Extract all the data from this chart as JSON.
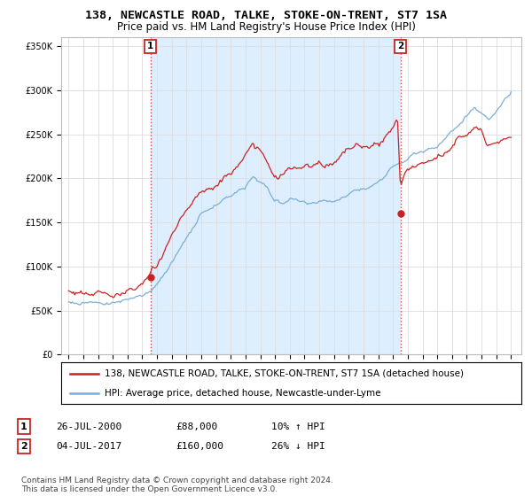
{
  "title": "138, NEWCASTLE ROAD, TALKE, STOKE-ON-TRENT, ST7 1SA",
  "subtitle": "Price paid vs. HM Land Registry's House Price Index (HPI)",
  "background_color": "#ffffff",
  "grid_color": "#dddddd",
  "line1_color": "#cc2222",
  "line2_color": "#7bafd4",
  "fill_color": "#ddeeff",
  "marker1_date": 2000.55,
  "marker1_price": 88000,
  "marker2_date": 2017.5,
  "marker2_price": 160000,
  "ylim": [
    0,
    360000
  ],
  "yticks": [
    0,
    50000,
    100000,
    150000,
    200000,
    250000,
    300000,
    350000
  ],
  "xlim_start": 1994.5,
  "xlim_end": 2025.7,
  "legend_line1": "138, NEWCASTLE ROAD, TALKE, STOKE-ON-TRENT, ST7 1SA (detached house)",
  "legend_line2": "HPI: Average price, detached house, Newcastle-under-Lyme",
  "ann1_date": "26-JUL-2000",
  "ann1_price": "£88,000",
  "ann1_hpi": "10% ↑ HPI",
  "ann2_date": "04-JUL-2017",
  "ann2_price": "£160,000",
  "ann2_hpi": "26% ↓ HPI",
  "footer": "Contains HM Land Registry data © Crown copyright and database right 2024.\nThis data is licensed under the Open Government Licence v3.0.",
  "title_fontsize": 9.5,
  "subtitle_fontsize": 8.5,
  "tick_fontsize": 7,
  "legend_fontsize": 7.5,
  "ann_fontsize": 8,
  "footer_fontsize": 6.5
}
